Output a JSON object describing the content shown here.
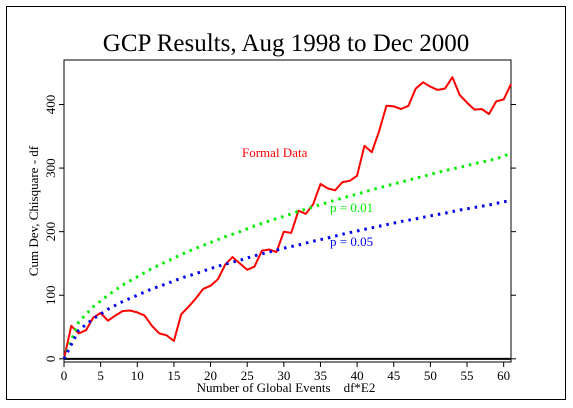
{
  "chart_data": {
    "type": "line",
    "title": "GCP Results, Aug 1998 to Dec 2000",
    "xlabel": "Number of Global Events    df*E2",
    "ylabel": "Cum Dev, Chisquare - df",
    "xlim": [
      0,
      61
    ],
    "ylim": [
      -5,
      470
    ],
    "xticks": [
      0,
      5,
      10,
      15,
      20,
      25,
      30,
      35,
      40,
      45,
      50,
      55,
      60
    ],
    "yticks": [
      0,
      100,
      200,
      300,
      400
    ],
    "grid": false,
    "annotations": [
      {
        "text": "Formal Data",
        "series": "formal",
        "color": "#ff0000"
      },
      {
        "text": "p = 0.01",
        "series": "p01",
        "color": "#00ee00"
      },
      {
        "text": "p = 0.05",
        "series": "p05",
        "color": "#0000ee"
      }
    ],
    "series": [
      {
        "key": "formal",
        "style": "solid",
        "color": "#ff0000",
        "x": [
          0,
          1,
          2,
          3,
          4,
          5,
          6,
          7,
          8,
          9,
          10,
          11,
          12,
          13,
          14,
          15,
          16,
          17,
          18,
          19,
          20,
          21,
          22,
          23,
          24,
          25,
          26,
          27,
          28,
          29,
          30,
          31,
          32,
          33,
          34,
          35,
          36,
          37,
          38,
          39,
          40,
          41,
          42,
          43,
          44,
          45,
          46,
          47,
          48,
          49,
          50,
          51,
          52,
          53,
          54,
          55,
          56,
          57,
          58,
          59,
          60,
          61
        ],
        "y": [
          0,
          52,
          40,
          45,
          65,
          72,
          60,
          68,
          75,
          76,
          73,
          68,
          52,
          40,
          37,
          28,
          70,
          82,
          95,
          110,
          115,
          125,
          148,
          160,
          150,
          140,
          145,
          170,
          172,
          168,
          200,
          198,
          233,
          228,
          243,
          275,
          268,
          265,
          278,
          280,
          288,
          335,
          325,
          358,
          398,
          397,
          393,
          398,
          425,
          435,
          428,
          423,
          425,
          443,
          415,
          403,
          392,
          393,
          385,
          405,
          408,
          432
        ]
      },
      {
        "key": "p01",
        "style": "dotted",
        "color": "#00ee00",
        "x": [
          0,
          2,
          4,
          6,
          8,
          10,
          12,
          14,
          16,
          18,
          20,
          22,
          24,
          26,
          28,
          30,
          32,
          34,
          36,
          38,
          40,
          42,
          44,
          46,
          48,
          50,
          52,
          54,
          56,
          58,
          60,
          61
        ],
        "y": [
          0,
          58,
          82,
          100,
          116,
          129,
          142,
          153,
          164,
          174,
          183,
          192,
          200,
          209,
          217,
          224,
          232,
          239,
          246,
          253,
          259,
          266,
          272,
          278,
          284,
          290,
          296,
          301,
          307,
          312,
          318,
          325
        ]
      },
      {
        "key": "p05",
        "style": "dotted",
        "color": "#0000ee",
        "x": [
          0,
          2,
          4,
          6,
          8,
          10,
          12,
          14,
          16,
          18,
          20,
          22,
          24,
          26,
          28,
          30,
          32,
          34,
          36,
          38,
          40,
          42,
          44,
          46,
          48,
          50,
          52,
          54,
          56,
          58,
          60,
          61
        ],
        "y": [
          0,
          45,
          63,
          78,
          90,
          100,
          110,
          118,
          127,
          134,
          142,
          149,
          155,
          162,
          168,
          174,
          179,
          185,
          190,
          196,
          201,
          206,
          211,
          216,
          220,
          225,
          229,
          234,
          238,
          242,
          247,
          249
        ]
      }
    ]
  }
}
